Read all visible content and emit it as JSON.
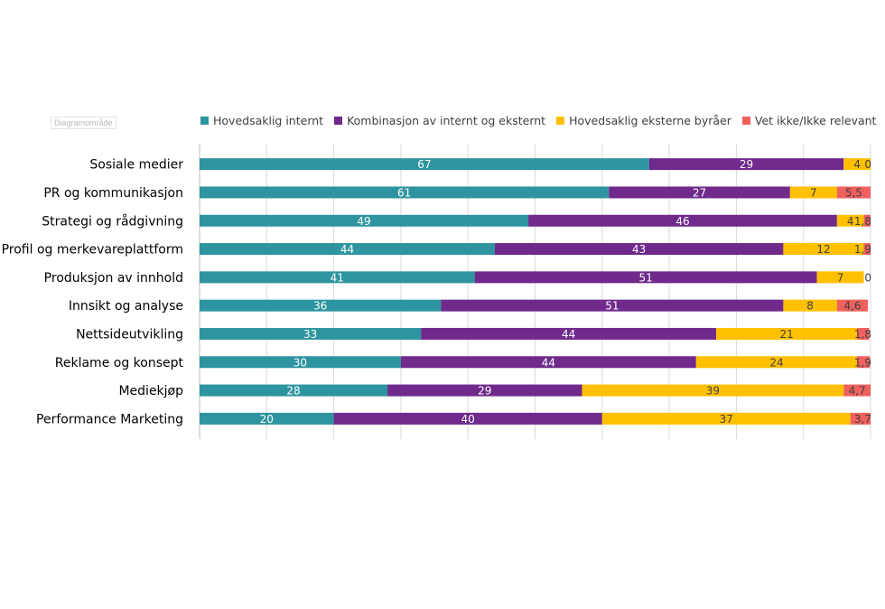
{
  "area_tag": "Diagramområde",
  "chart_data": {
    "type": "bar",
    "orientation": "horizontal",
    "stacked": true,
    "title": "",
    "xlabel": "",
    "ylabel": "",
    "xlim": [
      0,
      100
    ],
    "grid": true,
    "legend_position": "top",
    "categories": [
      "Sosiale medier",
      "PR og kommunikasjon",
      "Strategi og rådgivning",
      "Profil og merkevareplattform",
      "Produksjon av innhold",
      "Innsikt og analyse",
      "Nettsideutvikling",
      "Reklame og konsept",
      "Mediekjøp",
      "Performance Marketing"
    ],
    "series": [
      {
        "name": "Hovedsaklig internt",
        "color": "#2e95a0",
        "values": [
          67,
          61,
          49,
          44,
          41,
          36,
          33,
          30,
          28,
          20
        ],
        "labels": [
          "67",
          "61",
          "49",
          "44",
          "41",
          "36",
          "33",
          "30",
          "28",
          "20"
        ]
      },
      {
        "name": "Kombinasjon av internt og eksternt",
        "color": "#6f2a8c",
        "values": [
          29,
          27,
          46,
          43,
          51,
          51,
          44,
          44,
          29,
          40
        ],
        "labels": [
          "29",
          "27",
          "46",
          "43",
          "51",
          "51",
          "44",
          "44",
          "29",
          "40"
        ]
      },
      {
        "name": "Hovedsaklig eksterne byråer",
        "color": "#ffc000",
        "values": [
          4,
          7,
          4,
          12,
          7,
          8,
          21,
          24,
          39,
          37
        ],
        "labels": [
          "4",
          "7",
          "4",
          "12",
          "7",
          "8",
          "21",
          "24",
          "39",
          "37"
        ]
      },
      {
        "name": "Vet ikke/Ikke relevant",
        "color": "#f0605d",
        "values": [
          0,
          5.5,
          1.8,
          1.9,
          0,
          4.6,
          1.8,
          1.9,
          4.7,
          3.7
        ],
        "labels": [
          "0",
          "5,5",
          "1,8",
          "1,9",
          "0",
          "4,6",
          "1,8",
          "1,9",
          "4,7",
          "3,7"
        ]
      }
    ]
  }
}
